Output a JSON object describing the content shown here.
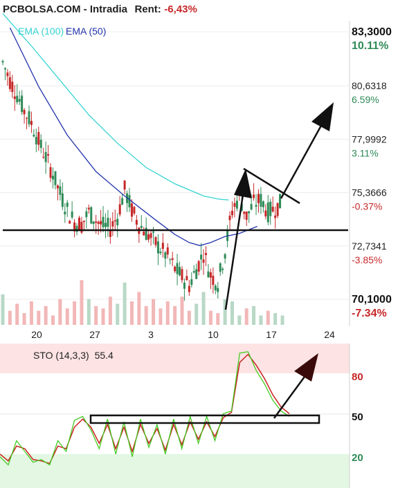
{
  "header": {
    "symbol": "PCBOLSA.COM - Intradia",
    "rent_label": "Rent:",
    "rent_value": "-6,43%"
  },
  "colors": {
    "ema100": "#35d3d3",
    "ema50": "#2233aa",
    "up_candle": "#2e8b57",
    "down_candle": "#c62828",
    "sto_k": "#44cc22",
    "sto_d": "#cc2222",
    "overbought_zone": "#fde3e3",
    "oversold_zone": "#e3f7e3"
  },
  "chart_data": [
    {
      "type": "candlestick",
      "title": "",
      "legend": [
        {
          "name": "EMA (100)",
          "color": "#35d3d3"
        },
        {
          "name": "EMA (50)",
          "color": "#2233aa"
        }
      ],
      "x_ticks": [
        "20",
        "27",
        "3",
        "10",
        "17",
        "24"
      ],
      "y_ticks": [
        {
          "value": 83.3,
          "label": "83,3000",
          "pct": "10.11%"
        },
        {
          "value": 80.6318,
          "label": "80,6318",
          "pct": "6.59%"
        },
        {
          "value": 77.9992,
          "label": "77,9992",
          "pct": "3.11%"
        },
        {
          "value": 75.3666,
          "label": "75,3666",
          "pct": "-0.37%"
        },
        {
          "value": 72.7341,
          "label": "72,7341",
          "pct": "-3.85%"
        },
        {
          "value": 70.1,
          "label": "70,1000",
          "pct": "-7.34%"
        }
      ],
      "ylim": [
        69.85,
        83.5
      ],
      "close_path": [
        [
          0,
          81.8
        ],
        [
          1,
          80.9
        ],
        [
          2,
          80.2
        ],
        [
          3,
          79.4
        ],
        [
          4,
          78.8
        ],
        [
          5,
          77.9
        ],
        [
          6,
          77.1
        ],
        [
          7,
          76.3
        ],
        [
          8,
          75.3
        ],
        [
          9,
          74.5
        ],
        [
          10,
          73.9
        ],
        [
          11,
          73.8
        ],
        [
          12,
          74.4
        ],
        [
          13,
          74.0
        ],
        [
          14,
          73.7
        ],
        [
          15,
          73.6
        ],
        [
          16,
          74.2
        ],
        [
          17,
          75.5
        ],
        [
          18,
          74.5
        ],
        [
          19,
          73.8
        ],
        [
          20,
          73.4
        ],
        [
          21,
          73.0
        ],
        [
          22,
          72.6
        ],
        [
          23,
          72.2
        ],
        [
          24,
          71.6
        ],
        [
          25,
          71.2
        ],
        [
          26,
          70.8
        ],
        [
          27,
          71.6
        ],
        [
          28,
          72.4
        ],
        [
          29,
          71.3
        ],
        [
          30,
          70.9
        ],
        [
          31,
          72.5
        ],
        [
          32,
          74.5
        ],
        [
          33,
          75.2
        ],
        [
          34,
          74.2
        ],
        [
          35,
          74.8
        ],
        [
          36,
          75.0
        ],
        [
          37,
          74.4
        ],
        [
          38,
          74.6
        ],
        [
          39,
          74.9
        ]
      ],
      "ema100": [
        [
          0,
          84.2
        ],
        [
          4,
          82.6
        ],
        [
          8,
          80.9
        ],
        [
          12,
          79.2
        ],
        [
          16,
          77.8
        ],
        [
          20,
          76.6
        ],
        [
          24,
          75.8
        ],
        [
          28,
          75.2
        ],
        [
          30,
          75.05
        ],
        [
          31.5,
          75.0
        ]
      ],
      "ema50": [
        [
          1,
          83.5
        ],
        [
          5,
          80.6
        ],
        [
          9,
          78.2
        ],
        [
          13,
          76.4
        ],
        [
          17,
          75.2
        ],
        [
          21,
          74.1
        ],
        [
          24,
          73.3
        ],
        [
          26,
          72.9
        ],
        [
          27.5,
          72.75
        ],
        [
          29,
          72.9
        ],
        [
          31,
          73.2
        ],
        [
          33,
          73.35
        ],
        [
          35.5,
          73.7
        ]
      ],
      "volume": [
        {
          "x": 0,
          "v": 0.65
        },
        {
          "x": 1,
          "v": 0.3
        },
        {
          "x": 2,
          "v": 0.45
        },
        {
          "x": 3,
          "v": 0.25
        },
        {
          "x": 4,
          "v": 0.5
        },
        {
          "x": 5,
          "v": 0.3
        },
        {
          "x": 6,
          "v": 0.4
        },
        {
          "x": 7,
          "v": 0.2
        },
        {
          "x": 8,
          "v": 0.55
        },
        {
          "x": 9,
          "v": 0.35
        },
        {
          "x": 10,
          "v": 0.5
        },
        {
          "x": 11,
          "v": 0.95
        },
        {
          "x": 12,
          "v": 0.55
        },
        {
          "x": 13,
          "v": 0.4
        },
        {
          "x": 14,
          "v": 0.35
        },
        {
          "x": 15,
          "v": 0.6
        },
        {
          "x": 16,
          "v": 0.45
        },
        {
          "x": 17,
          "v": 0.9
        },
        {
          "x": 18,
          "v": 0.5
        },
        {
          "x": 19,
          "v": 0.7
        },
        {
          "x": 20,
          "v": 0.4
        },
        {
          "x": 21,
          "v": 0.55
        },
        {
          "x": 22,
          "v": 0.35
        },
        {
          "x": 23,
          "v": 0.5
        },
        {
          "x": 24,
          "v": 0.4
        },
        {
          "x": 25,
          "v": 0.6
        },
        {
          "x": 26,
          "v": 0.3
        },
        {
          "x": 27,
          "v": 0.45
        },
        {
          "x": 28,
          "v": 0.7
        },
        {
          "x": 29,
          "v": 0.3
        },
        {
          "x": 30,
          "v": 0.25
        },
        {
          "x": 31,
          "v": 0.55
        },
        {
          "x": 32,
          "v": 0.5
        },
        {
          "x": 33,
          "v": 0.2
        },
        {
          "x": 34,
          "v": 0.35
        },
        {
          "x": 35,
          "v": 0.4
        },
        {
          "x": 36,
          "v": 0.2
        },
        {
          "x": 37,
          "v": 0.3
        },
        {
          "x": 38,
          "v": 0.25
        },
        {
          "x": 39,
          "v": 0.2
        }
      ]
    },
    {
      "type": "line",
      "title": "",
      "label": "STO (14,3,3)",
      "value": "55.4",
      "y_ticks": [
        80,
        50,
        20
      ],
      "ylim": [
        0,
        105
      ],
      "k": [
        [
          0,
          18
        ],
        [
          1,
          12
        ],
        [
          2,
          30
        ],
        [
          3,
          22
        ],
        [
          4,
          14
        ],
        [
          5,
          16
        ],
        [
          6,
          12
        ],
        [
          7,
          30
        ],
        [
          8,
          22
        ],
        [
          9,
          45
        ],
        [
          10,
          48
        ],
        [
          11,
          38
        ],
        [
          12,
          24
        ],
        [
          13,
          46
        ],
        [
          14,
          20
        ],
        [
          15,
          44
        ],
        [
          16,
          18
        ],
        [
          17,
          46
        ],
        [
          18,
          25
        ],
        [
          19,
          42
        ],
        [
          20,
          20
        ],
        [
          21,
          46
        ],
        [
          22,
          24
        ],
        [
          23,
          48
        ],
        [
          24,
          28
        ],
        [
          25,
          48
        ],
        [
          26,
          30
        ],
        [
          27,
          50
        ],
        [
          28,
          52
        ],
        [
          29,
          95
        ],
        [
          30,
          96
        ],
        [
          31,
          82
        ],
        [
          32,
          72
        ],
        [
          33,
          60
        ],
        [
          34,
          52
        ],
        [
          35,
          48
        ]
      ],
      "d": [
        [
          0,
          20
        ],
        [
          1,
          15
        ],
        [
          2,
          26
        ],
        [
          3,
          24
        ],
        [
          4,
          16
        ],
        [
          5,
          15
        ],
        [
          6,
          13
        ],
        [
          7,
          26
        ],
        [
          8,
          24
        ],
        [
          9,
          40
        ],
        [
          10,
          46
        ],
        [
          11,
          40
        ],
        [
          12,
          28
        ],
        [
          13,
          42
        ],
        [
          14,
          24
        ],
        [
          15,
          40
        ],
        [
          16,
          22
        ],
        [
          17,
          42
        ],
        [
          18,
          28
        ],
        [
          19,
          39
        ],
        [
          20,
          23
        ],
        [
          21,
          42
        ],
        [
          22,
          27
        ],
        [
          23,
          44
        ],
        [
          24,
          31
        ],
        [
          25,
          44
        ],
        [
          26,
          33
        ],
        [
          27,
          47
        ],
        [
          28,
          51
        ],
        [
          29,
          88
        ],
        [
          30,
          94
        ],
        [
          31,
          86
        ],
        [
          32,
          76
        ],
        [
          33,
          64
        ],
        [
          34,
          55
        ],
        [
          35,
          50
        ]
      ]
    }
  ]
}
